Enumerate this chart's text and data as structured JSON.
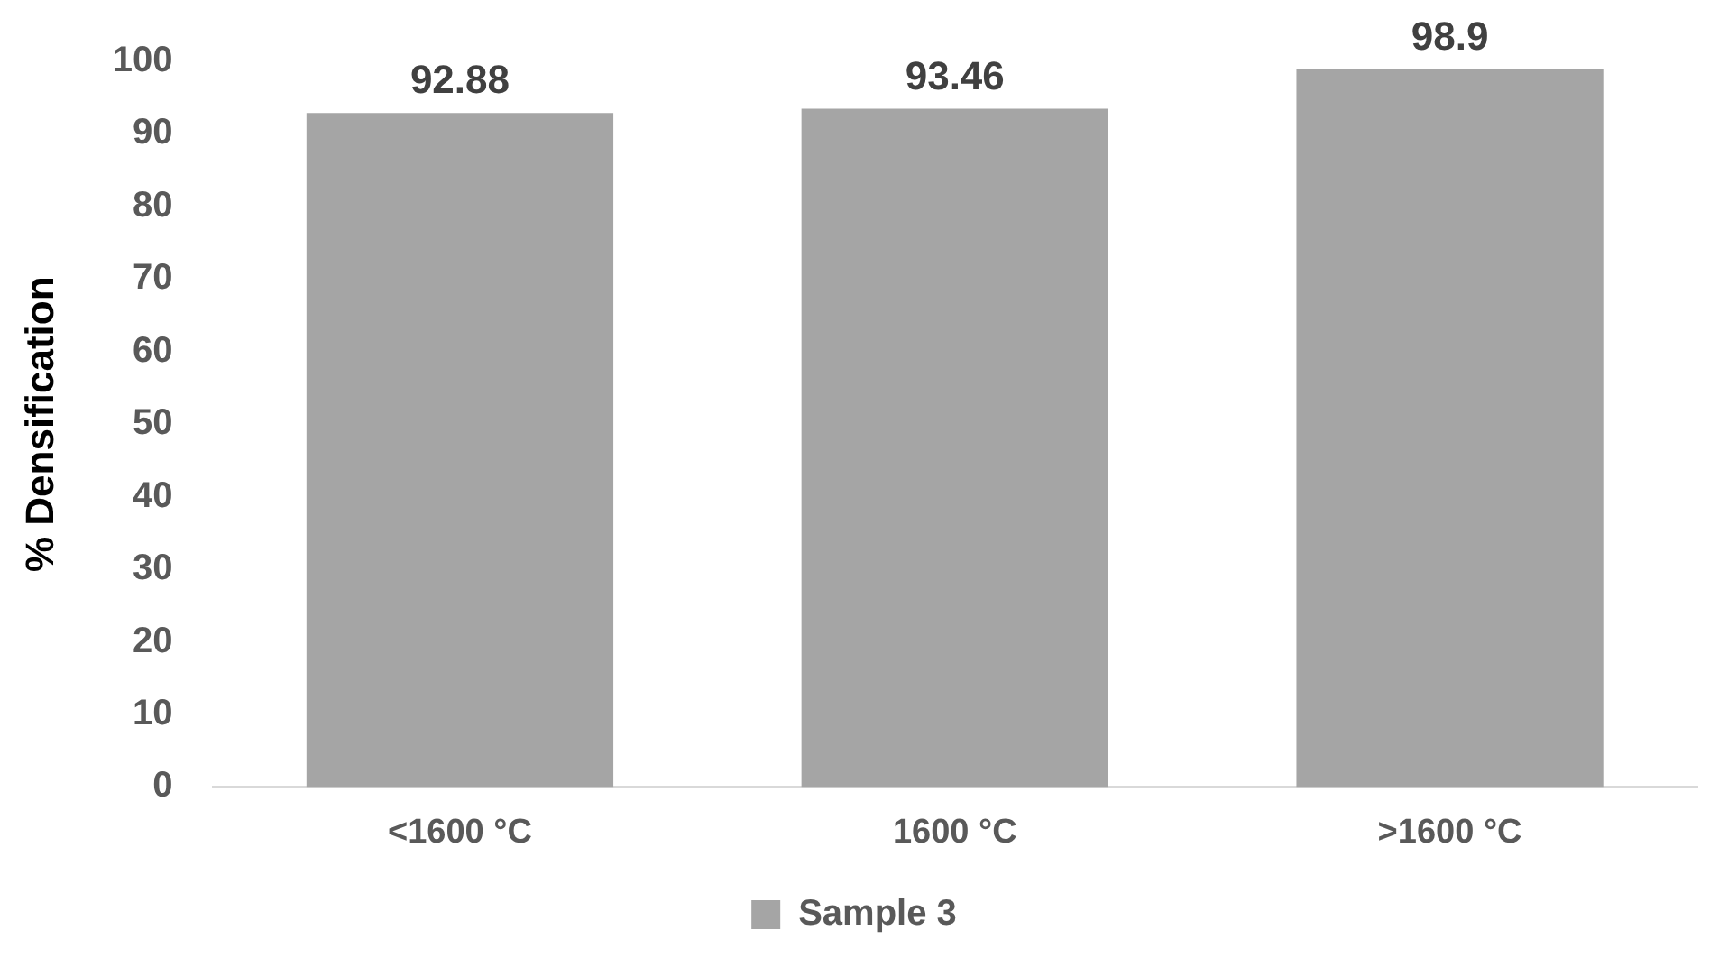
{
  "chart_data": {
    "type": "bar",
    "ylabel": "% Densification",
    "categories": [
      "<1600 °C",
      "1600 °C",
      ">1600 °C"
    ],
    "series": [
      {
        "name": "Sample 3",
        "color": "#a5a5a5",
        "values": [
          92.88,
          93.46,
          98.9
        ]
      }
    ],
    "ylim": [
      0,
      100
    ],
    "yticks": [
      0,
      10,
      20,
      30,
      40,
      50,
      60,
      70,
      80,
      90,
      100
    ],
    "grid": false,
    "legend": "bottom",
    "data_labels": true
  }
}
